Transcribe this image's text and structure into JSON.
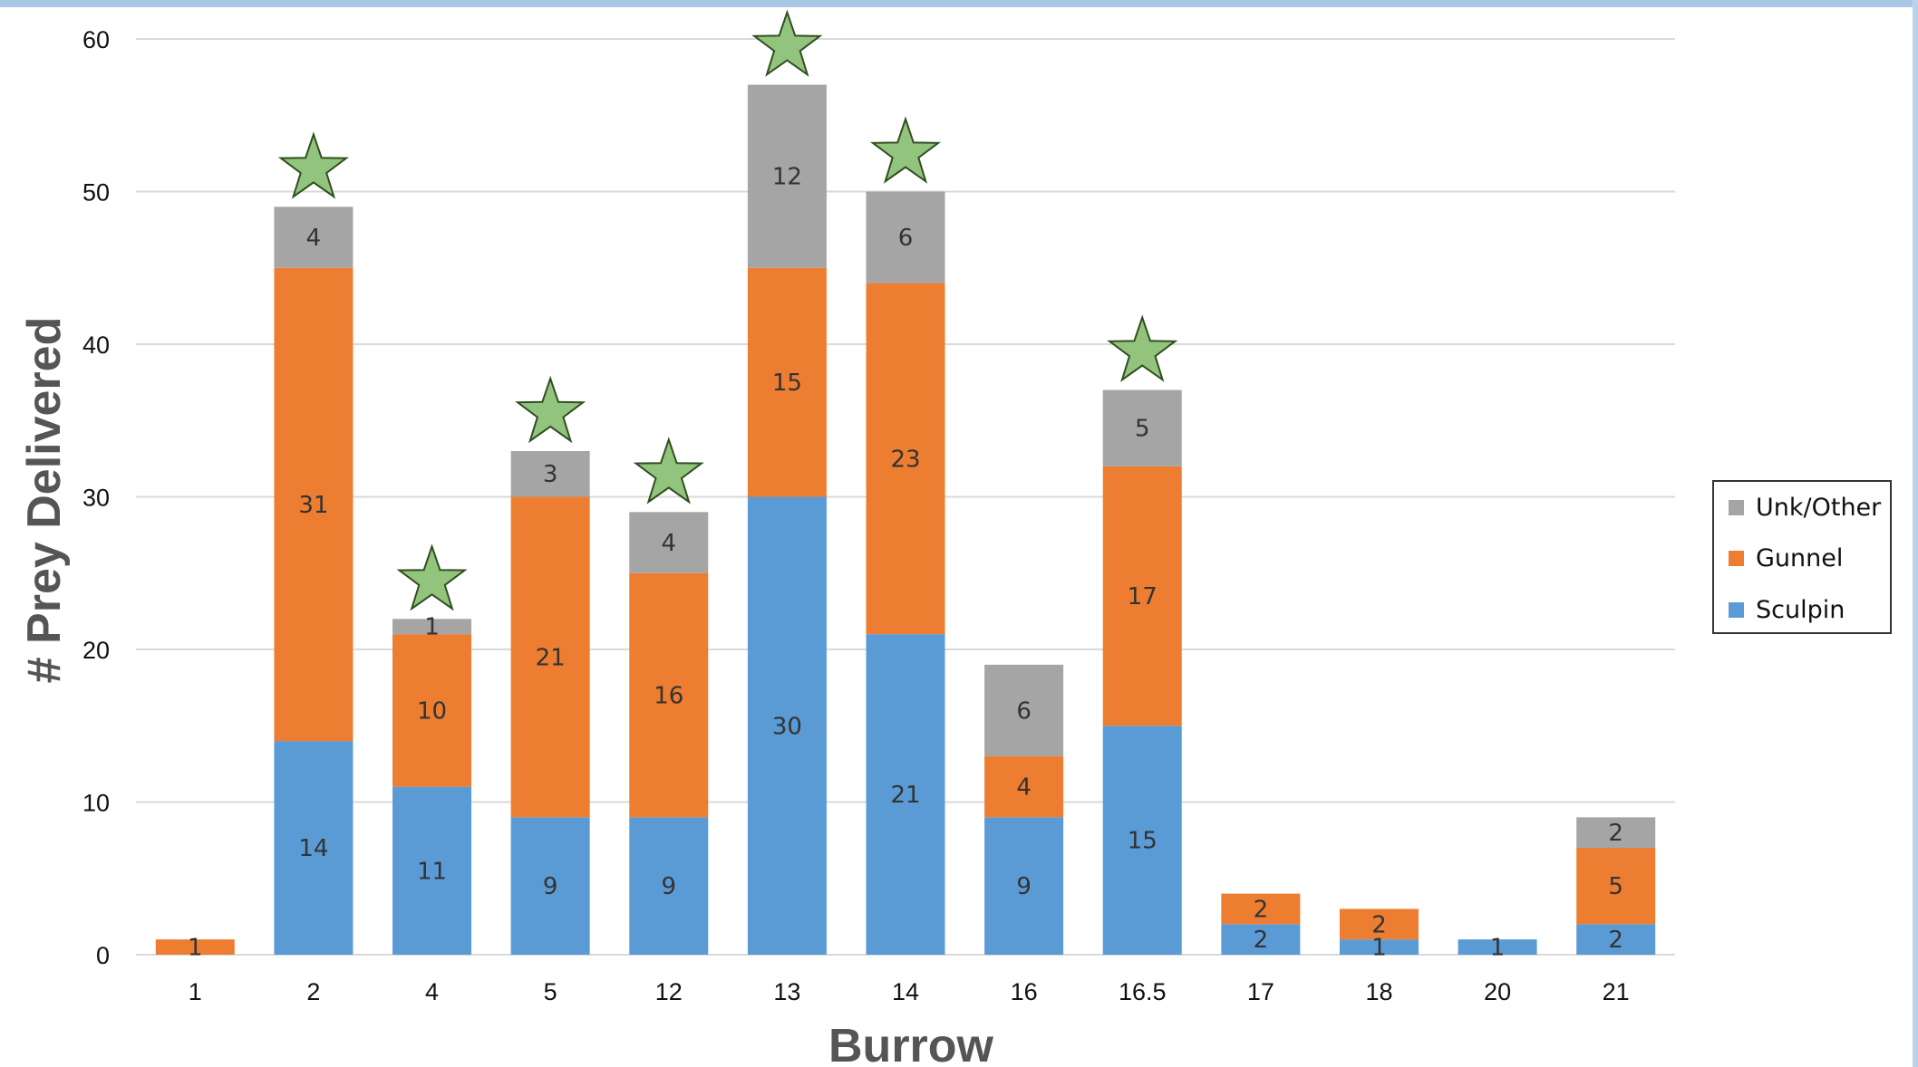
{
  "chart_data": {
    "type": "bar",
    "stacked": true,
    "title": "",
    "xlabel": "Burrow",
    "ylabel": "# Prey Delivered",
    "ylim": [
      0,
      60
    ],
    "yticks": [
      "0",
      "10",
      "20",
      "30",
      "40",
      "50",
      "60"
    ],
    "categories": [
      "1",
      "2",
      "4",
      "5",
      "12",
      "13",
      "14",
      "16",
      "16.5",
      "17",
      "18",
      "20",
      "21"
    ],
    "series": [
      {
        "name": "Sculpin",
        "color": "#5b9bd5",
        "values": [
          0,
          14,
          11,
          9,
          9,
          30,
          21,
          9,
          15,
          2,
          1,
          1,
          2
        ]
      },
      {
        "name": "Gunnel",
        "color": "#ed7d31",
        "values": [
          1,
          31,
          10,
          21,
          16,
          15,
          23,
          4,
          17,
          2,
          2,
          0,
          5
        ]
      },
      {
        "name": "Unk/Other",
        "color": "#a5a5a5",
        "values": [
          0,
          4,
          1,
          3,
          4,
          12,
          6,
          6,
          5,
          0,
          0,
          0,
          2
        ]
      }
    ],
    "data_labels": [
      [
        "",
        "14",
        "11",
        "9",
        "9",
        "30",
        "21",
        "9",
        "15",
        "2",
        "1",
        "1",
        "2"
      ],
      [
        "1",
        "31",
        "10",
        "21",
        "16",
        "15",
        "23",
        "4",
        "17",
        "2",
        "2",
        "",
        "5"
      ],
      [
        "",
        "4",
        "1",
        "3",
        "4",
        "12",
        "6",
        "6",
        "5",
        "",
        "",
        "",
        "2"
      ]
    ],
    "starred_categories": [
      "2",
      "4",
      "5",
      "12",
      "13",
      "14",
      "16.5"
    ],
    "star_color": "#93c47d",
    "grid": true,
    "legend_position": "right",
    "legend_order": [
      "Unk/Other",
      "Gunnel",
      "Sculpin"
    ]
  }
}
